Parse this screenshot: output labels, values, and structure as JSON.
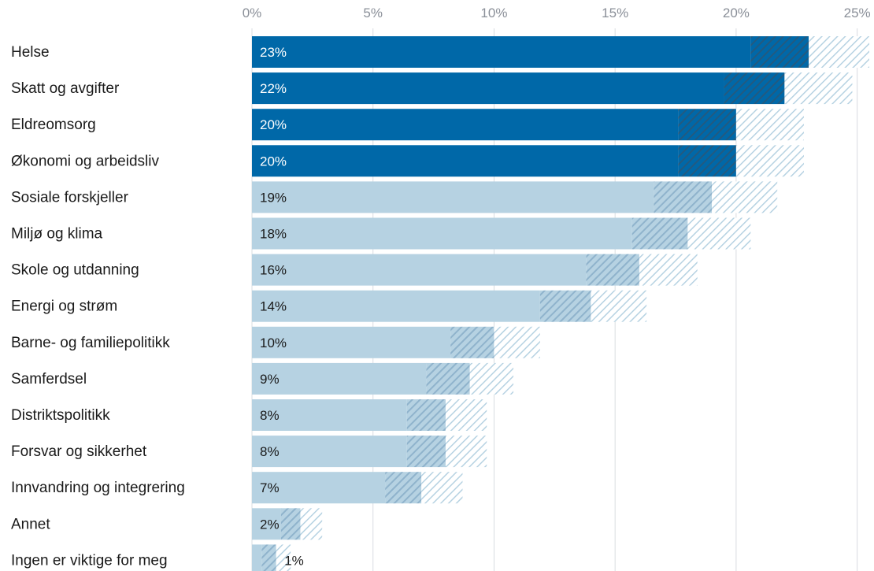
{
  "chart_data": {
    "type": "bar",
    "orientation": "horizontal",
    "categories": [
      "Helse",
      "Skatt og avgifter",
      "Eldreomsorg",
      "Økonomi og arbeidsliv",
      "Sosiale forskjeller",
      "Miljø og klima",
      "Skole og utdanning",
      "Energi og strøm",
      "Barne- og familiepolitikk",
      "Samferdsel",
      "Distriktspolitikk",
      "Forsvar og sikkerhet",
      "Innvandring og integrering",
      "Annet",
      "Ingen er viktige for meg"
    ],
    "values": [
      23,
      22,
      20,
      20,
      19,
      18,
      16,
      14,
      10,
      9,
      8,
      8,
      7,
      2,
      1
    ],
    "value_labels": [
      "23%",
      "22%",
      "20%",
      "20%",
      "19%",
      "18%",
      "16%",
      "14%",
      "10%",
      "9%",
      "8%",
      "8%",
      "7%",
      "2%",
      "1%"
    ],
    "interval_low": [
      20.6,
      19.5,
      17.6,
      17.6,
      16.6,
      15.7,
      13.8,
      11.9,
      8.2,
      7.2,
      6.4,
      6.4,
      5.5,
      1.2,
      0.4
    ],
    "interval_high": [
      25.5,
      24.8,
      22.8,
      22.8,
      21.7,
      20.6,
      18.4,
      16.3,
      11.9,
      10.8,
      9.7,
      9.7,
      8.7,
      2.9,
      1.6
    ],
    "xlim": [
      0,
      25.5
    ],
    "xticks": [
      0,
      5,
      10,
      15,
      20,
      25
    ],
    "xtick_labels": [
      "0%",
      "5%",
      "10%",
      "15%",
      "20%",
      "25%"
    ],
    "highlighted_count": 4,
    "title": "",
    "xlabel": "",
    "ylabel": "",
    "grid": true,
    "legend": "none",
    "colors": {
      "highlight": "#0068a8",
      "base": "#b6d2e2",
      "highlight_text": "#ffffff",
      "base_text": "#1a1a1a",
      "hatch_dark_highlight": "#235a80",
      "hatch_dark_base": "#8fb3cc",
      "hatch_light": "#b6d2e2"
    }
  }
}
